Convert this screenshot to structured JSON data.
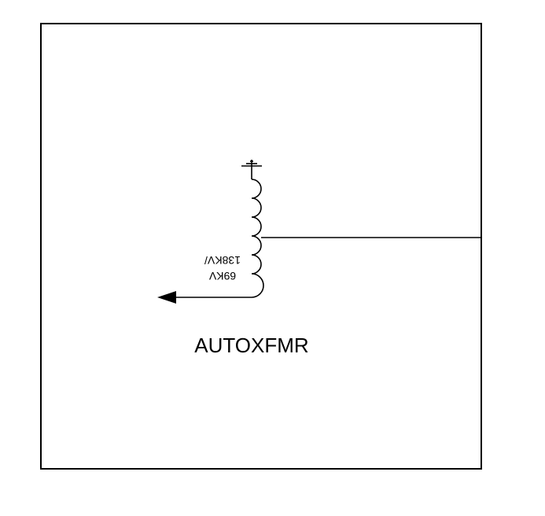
{
  "diagram": {
    "component_label": "AUTOXFMR",
    "rating_line1": "69KV",
    "rating_line2": "138KV/",
    "rating_text_mirrored": true,
    "line_color": "#000000",
    "background_color": "#ffffff"
  }
}
